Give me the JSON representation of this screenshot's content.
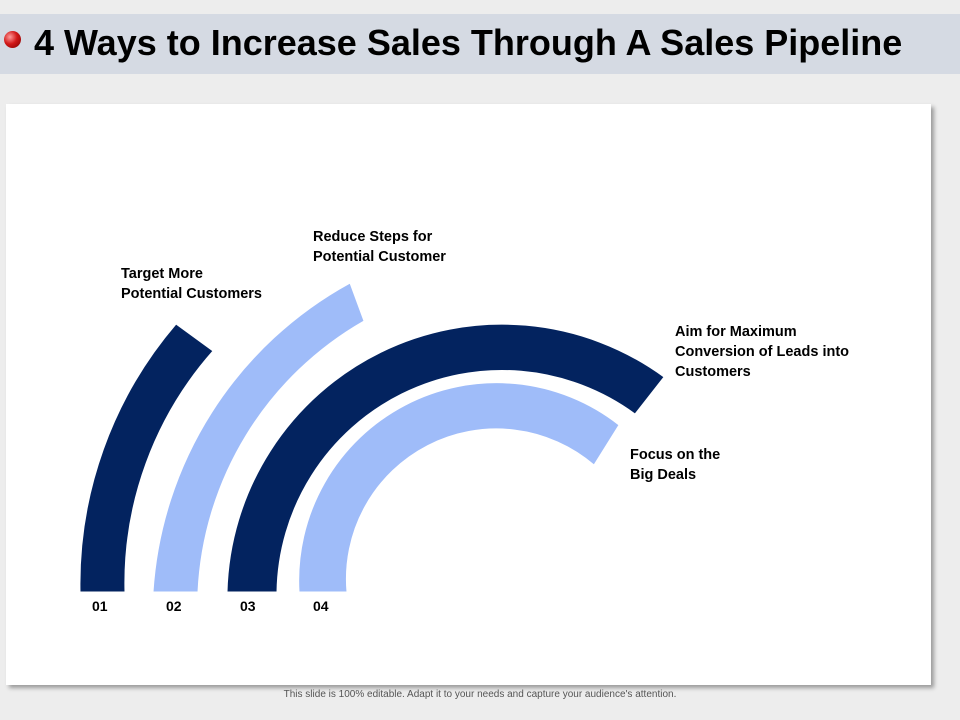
{
  "title": "4 Ways to Increase Sales Through A Sales Pipeline",
  "colors": {
    "dark": "#03235f",
    "light": "#9fbcf9"
  },
  "steps": [
    {
      "number": "01",
      "lines": [
        "Target More",
        "Potential Customers"
      ]
    },
    {
      "number": "02",
      "lines": [
        "Reduce Steps for",
        "Potential Customer"
      ]
    },
    {
      "number": "03",
      "lines": [
        "Aim for Maximum",
        "Conversion of Leads into",
        "Customers"
      ]
    },
    {
      "number": "04",
      "lines": [
        "Focus on the",
        "Big Deals"
      ]
    }
  ],
  "footer": "This slide is 100% editable. Adapt it to your needs and capture your audience's attention."
}
